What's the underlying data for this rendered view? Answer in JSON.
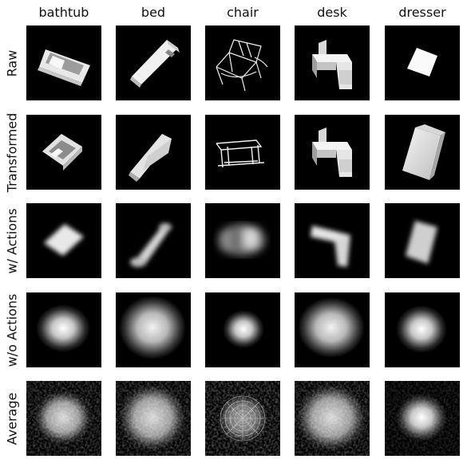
{
  "columns": [
    "bathtub",
    "bed",
    "chair",
    "desk",
    "dresser"
  ],
  "rows": [
    "Raw",
    "Transformed",
    "w/ Actions",
    "w/o Actions",
    "Average"
  ]
}
